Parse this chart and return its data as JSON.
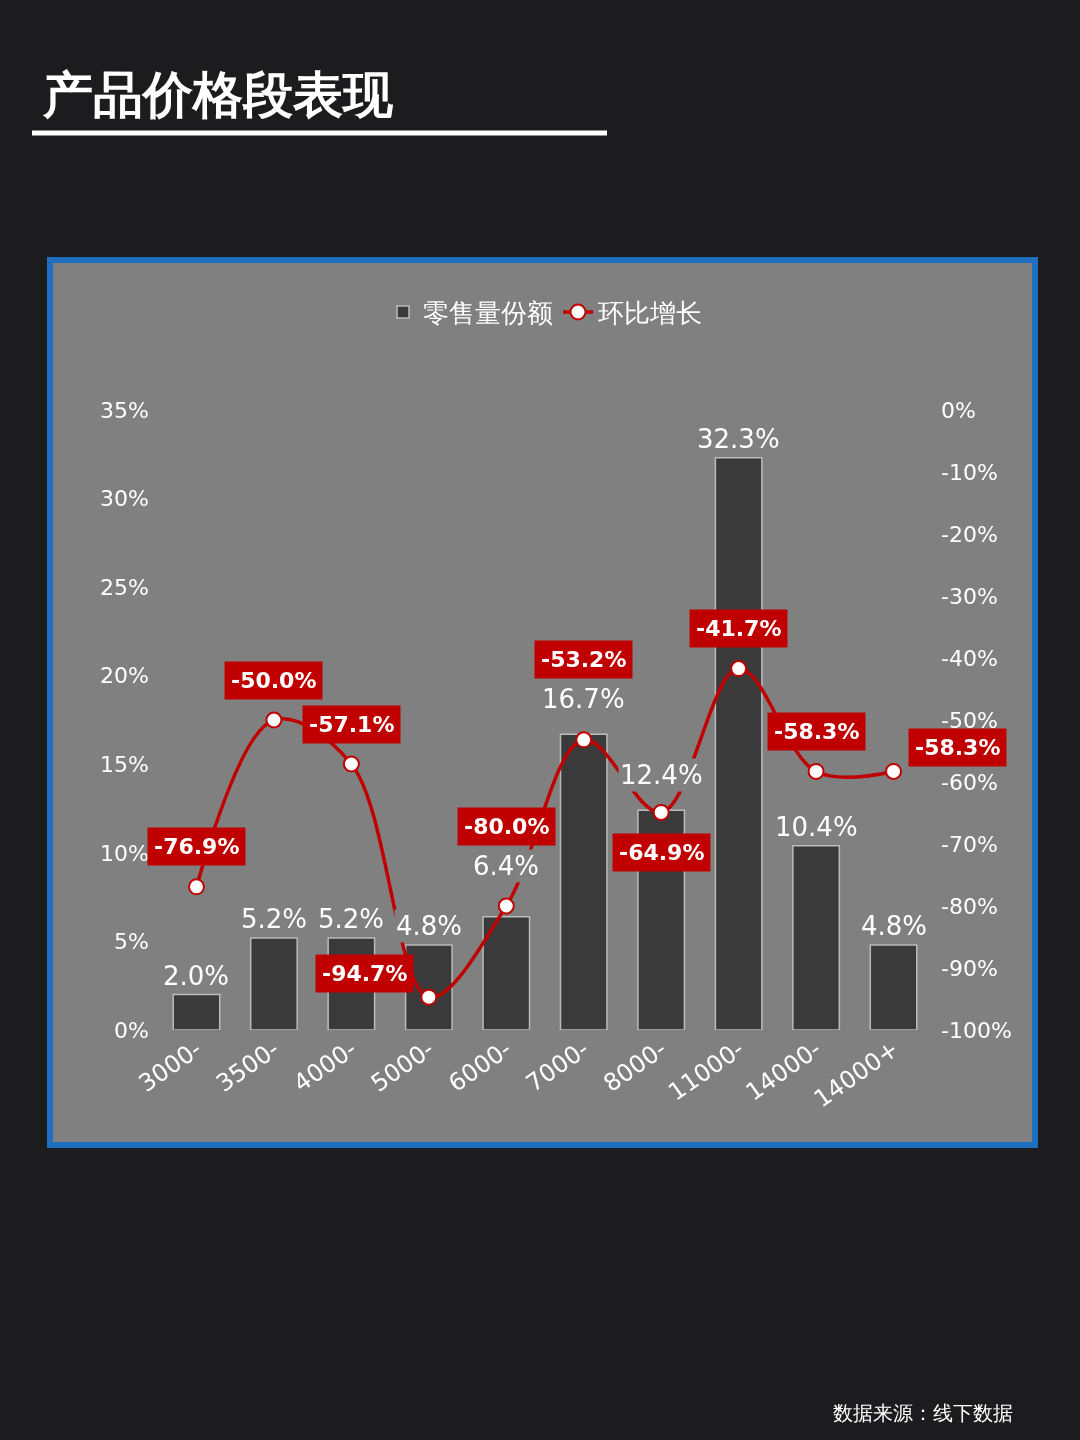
{
  "chart_data": {
    "type": "bar",
    "title": "产品价格段表现",
    "categories": [
      "3000-",
      "3500-",
      "4000-",
      "5000-",
      "6000-",
      "7000-",
      "8000-",
      "11000-",
      "14000-",
      "14000+"
    ],
    "series": [
      {
        "name": "零售量份额",
        "color": "#3a3a3a",
        "values": [
          2.0,
          5.2,
          5.2,
          4.8,
          6.4,
          16.7,
          12.4,
          32.3,
          10.4,
          4.8
        ],
        "value_labels": [
          "2.0%",
          "5.2%",
          "5.2%",
          "4.8%",
          "6.4%",
          "16.7%",
          "12.4%",
          "32.3%",
          "10.4%",
          "4.8%"
        ]
      },
      {
        "name": "环比增长",
        "type": "line",
        "axis": "y2",
        "color": "#c00000",
        "marker": "circle",
        "values": [
          -76.9,
          -50.0,
          -57.1,
          -94.7,
          -80.0,
          -53.2,
          -64.9,
          -41.7,
          -58.3,
          -58.3
        ],
        "value_labels": [
          "-76.9%",
          "-50.0%",
          "-57.1%",
          "-94.7%",
          "-80.0%",
          "-53.2%",
          "-64.9%",
          "-41.7%",
          "-58.3%",
          "-58.3%"
        ]
      }
    ],
    "ylim": [
      0,
      35
    ],
    "yticks": [
      {
        "value": 0,
        "label": "0%"
      },
      {
        "value": 5,
        "label": "5%"
      },
      {
        "value": 10,
        "label": "10%"
      },
      {
        "value": 15,
        "label": "15%"
      },
      {
        "value": 20,
        "label": "20%"
      },
      {
        "value": 25,
        "label": "25%"
      },
      {
        "value": 30,
        "label": "30%"
      },
      {
        "value": 35,
        "label": "35%"
      }
    ],
    "y2lim": [
      -100,
      0
    ],
    "y2ticks": [
      {
        "value": 0,
        "label": "0%"
      },
      {
        "value": -10,
        "label": "-10%"
      },
      {
        "value": -20,
        "label": "-20%"
      },
      {
        "value": -30,
        "label": "-30%"
      },
      {
        "value": -40,
        "label": "-40%"
      },
      {
        "value": -50,
        "label": "-50%"
      },
      {
        "value": -60,
        "label": "-60%"
      },
      {
        "value": -70,
        "label": "-70%"
      },
      {
        "value": -80,
        "label": "-80%"
      },
      {
        "value": -90,
        "label": "-90%"
      },
      {
        "value": -100,
        "label": "-100%"
      }
    ],
    "grid": false,
    "legend": "top",
    "annotations": [
      "数据来源：线下数据"
    ]
  }
}
